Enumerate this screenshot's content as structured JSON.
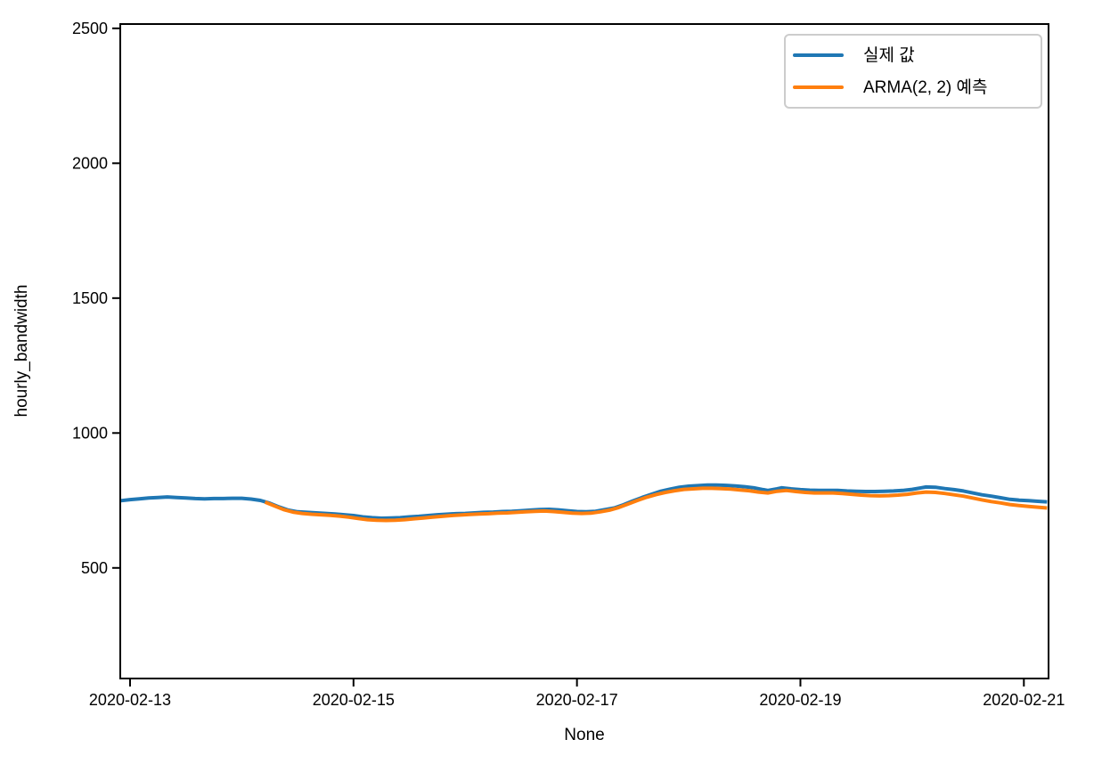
{
  "figure": {
    "background": "#ffffff",
    "spine_color": "#000000"
  },
  "chart_data": {
    "type": "line",
    "title": "",
    "xlabel": "None",
    "ylabel": "hourly_bandwidth",
    "x_unit": "hours since 2020-02-13 00:00",
    "xlim": [
      -2.1,
      197.3
    ],
    "ylim": [
      90,
      2516
    ],
    "grid": false,
    "x_ticks": [
      {
        "value": 0,
        "label": "2020-02-13"
      },
      {
        "value": 48,
        "label": "2020-02-15"
      },
      {
        "value": 96,
        "label": "2020-02-17"
      },
      {
        "value": 144,
        "label": "2020-02-19"
      },
      {
        "value": 192,
        "label": "2020-02-21"
      }
    ],
    "y_ticks": [
      {
        "value": 500,
        "label": "500"
      },
      {
        "value": 1000,
        "label": "1000"
      },
      {
        "value": 1500,
        "label": "1500"
      },
      {
        "value": 2000,
        "label": "2000"
      },
      {
        "value": 2500,
        "label": "2500"
      }
    ],
    "legend": {
      "position": "upper right",
      "entries": [
        {
          "label": "실제 값",
          "color": "#1f77b4"
        },
        {
          "label": "ARMA(2, 2) 예측",
          "color": "#ff7f0e"
        }
      ]
    },
    "series": [
      {
        "name": "실제 값",
        "color": "#1f77b4",
        "line_width": 4,
        "points": [
          [
            -2,
            749
          ],
          [
            0,
            753
          ],
          [
            2,
            756
          ],
          [
            4,
            759
          ],
          [
            6,
            761
          ],
          [
            8,
            763
          ],
          [
            10,
            761
          ],
          [
            12,
            759
          ],
          [
            14,
            757
          ],
          [
            16,
            756
          ],
          [
            18,
            757
          ],
          [
            20,
            757
          ],
          [
            22,
            758
          ],
          [
            24,
            758
          ],
          [
            26,
            755
          ],
          [
            28,
            750
          ],
          [
            30,
            740
          ],
          [
            32,
            726
          ],
          [
            34,
            714
          ],
          [
            36,
            708
          ],
          [
            38,
            706
          ],
          [
            40,
            704
          ],
          [
            42,
            702
          ],
          [
            44,
            700
          ],
          [
            46,
            697
          ],
          [
            48,
            694
          ],
          [
            50,
            689
          ],
          [
            52,
            686
          ],
          [
            54,
            684
          ],
          [
            56,
            685
          ],
          [
            58,
            686
          ],
          [
            60,
            689
          ],
          [
            62,
            691
          ],
          [
            64,
            694
          ],
          [
            66,
            697
          ],
          [
            68,
            699
          ],
          [
            70,
            701
          ],
          [
            72,
            702
          ],
          [
            74,
            704
          ],
          [
            76,
            706
          ],
          [
            78,
            707
          ],
          [
            80,
            709
          ],
          [
            82,
            710
          ],
          [
            84,
            712
          ],
          [
            86,
            714
          ],
          [
            88,
            716
          ],
          [
            90,
            717
          ],
          [
            92,
            715
          ],
          [
            94,
            712
          ],
          [
            96,
            709
          ],
          [
            98,
            708
          ],
          [
            100,
            710
          ],
          [
            102,
            716
          ],
          [
            104,
            722
          ],
          [
            106,
            734
          ],
          [
            108,
            748
          ],
          [
            110,
            761
          ],
          [
            112,
            773
          ],
          [
            114,
            784
          ],
          [
            116,
            792
          ],
          [
            118,
            799
          ],
          [
            120,
            803
          ],
          [
            122,
            805
          ],
          [
            124,
            807
          ],
          [
            126,
            807
          ],
          [
            128,
            806
          ],
          [
            130,
            804
          ],
          [
            132,
            801
          ],
          [
            134,
            797
          ],
          [
            136,
            790
          ],
          [
            137,
            787
          ],
          [
            139,
            793
          ],
          [
            140,
            797
          ],
          [
            142,
            793
          ],
          [
            144,
            790
          ],
          [
            146,
            788
          ],
          [
            148,
            787
          ],
          [
            150,
            787
          ],
          [
            152,
            787
          ],
          [
            154,
            785
          ],
          [
            156,
            784
          ],
          [
            158,
            783
          ],
          [
            160,
            783
          ],
          [
            162,
            784
          ],
          [
            164,
            785
          ],
          [
            166,
            787
          ],
          [
            168,
            791
          ],
          [
            170,
            797
          ],
          [
            171,
            800
          ],
          [
            173,
            799
          ],
          [
            175,
            794
          ],
          [
            177,
            790
          ],
          [
            179,
            785
          ],
          [
            181,
            778
          ],
          [
            183,
            771
          ],
          [
            185,
            766
          ],
          [
            187,
            760
          ],
          [
            189,
            754
          ],
          [
            191,
            751
          ],
          [
            193,
            749
          ],
          [
            195,
            747
          ],
          [
            197,
            745
          ]
        ]
      },
      {
        "name": "ARMA(2, 2) 예측",
        "color": "#ff7f0e",
        "line_width": 4,
        "points": [
          [
            29,
            744
          ],
          [
            31,
            730
          ],
          [
            33,
            716
          ],
          [
            35,
            707
          ],
          [
            37,
            702
          ],
          [
            39,
            699
          ],
          [
            41,
            697
          ],
          [
            43,
            695
          ],
          [
            45,
            692
          ],
          [
            47,
            688
          ],
          [
            49,
            683
          ],
          [
            51,
            679
          ],
          [
            53,
            677
          ],
          [
            55,
            676
          ],
          [
            57,
            677
          ],
          [
            59,
            679
          ],
          [
            61,
            682
          ],
          [
            63,
            685
          ],
          [
            65,
            688
          ],
          [
            67,
            691
          ],
          [
            69,
            694
          ],
          [
            71,
            696
          ],
          [
            73,
            698
          ],
          [
            75,
            700
          ],
          [
            77,
            701
          ],
          [
            79,
            703
          ],
          [
            81,
            704
          ],
          [
            83,
            706
          ],
          [
            85,
            708
          ],
          [
            87,
            710
          ],
          [
            89,
            711
          ],
          [
            91,
            709
          ],
          [
            93,
            706
          ],
          [
            95,
            703
          ],
          [
            97,
            702
          ],
          [
            99,
            703
          ],
          [
            101,
            708
          ],
          [
            103,
            714
          ],
          [
            105,
            724
          ],
          [
            107,
            737
          ],
          [
            109,
            750
          ],
          [
            111,
            762
          ],
          [
            113,
            772
          ],
          [
            115,
            780
          ],
          [
            117,
            786
          ],
          [
            119,
            791
          ],
          [
            121,
            793
          ],
          [
            123,
            795
          ],
          [
            125,
            795
          ],
          [
            127,
            794
          ],
          [
            129,
            792
          ],
          [
            131,
            789
          ],
          [
            133,
            786
          ],
          [
            135,
            781
          ],
          [
            137,
            778
          ],
          [
            139,
            784
          ],
          [
            141,
            787
          ],
          [
            143,
            783
          ],
          [
            145,
            780
          ],
          [
            147,
            778
          ],
          [
            149,
            778
          ],
          [
            151,
            778
          ],
          [
            153,
            776
          ],
          [
            155,
            773
          ],
          [
            157,
            770
          ],
          [
            159,
            768
          ],
          [
            161,
            767
          ],
          [
            163,
            768
          ],
          [
            165,
            770
          ],
          [
            167,
            773
          ],
          [
            169,
            778
          ],
          [
            171,
            781
          ],
          [
            173,
            780
          ],
          [
            175,
            776
          ],
          [
            177,
            771
          ],
          [
            179,
            766
          ],
          [
            181,
            759
          ],
          [
            183,
            752
          ],
          [
            185,
            746
          ],
          [
            187,
            741
          ],
          [
            189,
            735
          ],
          [
            191,
            731
          ],
          [
            193,
            728
          ],
          [
            195,
            725
          ],
          [
            197,
            722
          ]
        ]
      }
    ]
  }
}
